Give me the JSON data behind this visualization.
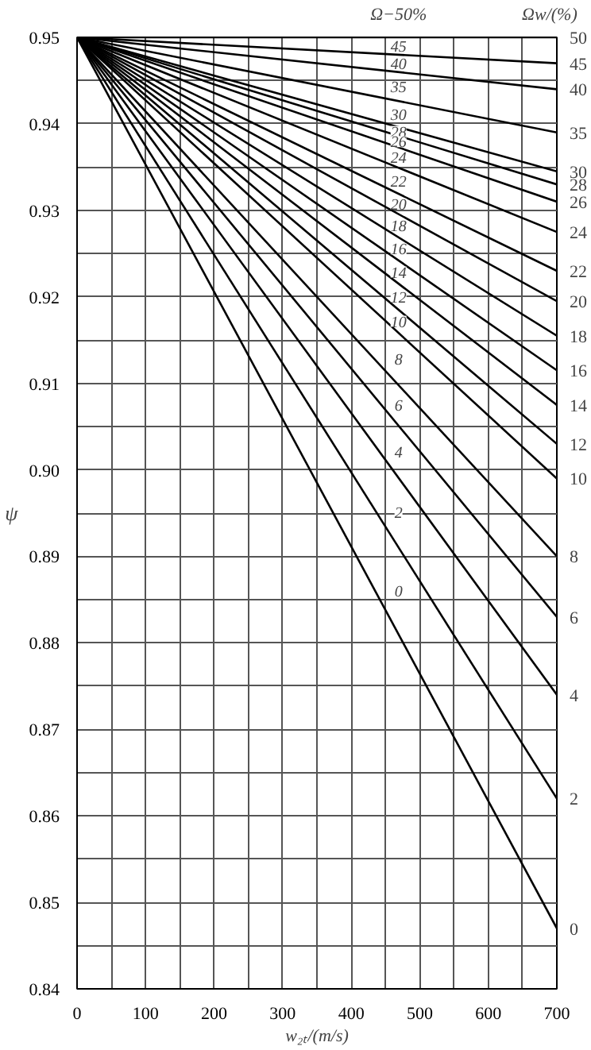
{
  "chart_data": {
    "type": "line",
    "xlabel": "w₂ₜ/(m/s)",
    "ylabel": "ψ",
    "x": [
      0,
      700
    ],
    "series": [
      {
        "name": "50",
        "color": "#000000",
        "values": [
          0.95,
          0.95
        ]
      },
      {
        "name": "45",
        "color": "#000000",
        "values": [
          0.95,
          0.947
        ]
      },
      {
        "name": "40",
        "color": "#000000",
        "values": [
          0.95,
          0.944
        ]
      },
      {
        "name": "35",
        "color": "#000000",
        "values": [
          0.95,
          0.939
        ]
      },
      {
        "name": "30",
        "color": "#000000",
        "values": [
          0.95,
          0.9345
        ]
      },
      {
        "name": "28",
        "color": "#000000",
        "values": [
          0.95,
          0.933
        ]
      },
      {
        "name": "26",
        "color": "#000000",
        "values": [
          0.95,
          0.931
        ]
      },
      {
        "name": "24",
        "color": "#000000",
        "values": [
          0.95,
          0.9275
        ]
      },
      {
        "name": "22",
        "color": "#000000",
        "values": [
          0.95,
          0.923
        ]
      },
      {
        "name": "20",
        "color": "#000000",
        "values": [
          0.95,
          0.9195
        ]
      },
      {
        "name": "18",
        "color": "#000000",
        "values": [
          0.95,
          0.9155
        ]
      },
      {
        "name": "16",
        "color": "#000000",
        "values": [
          0.95,
          0.9115
        ]
      },
      {
        "name": "14",
        "color": "#000000",
        "values": [
          0.95,
          0.9075
        ]
      },
      {
        "name": "12",
        "color": "#000000",
        "values": [
          0.95,
          0.903
        ]
      },
      {
        "name": "10",
        "color": "#000000",
        "values": [
          0.95,
          0.899
        ]
      },
      {
        "name": "8",
        "color": "#000000",
        "values": [
          0.95,
          0.89
        ]
      },
      {
        "name": "6",
        "color": "#000000",
        "values": [
          0.95,
          0.883
        ]
      },
      {
        "name": "4",
        "color": "#000000",
        "values": [
          0.95,
          0.874
        ]
      },
      {
        "name": "2",
        "color": "#000000",
        "values": [
          0.95,
          0.862
        ]
      },
      {
        "name": "0",
        "color": "#000000",
        "values": [
          0.95,
          0.847
        ]
      }
    ],
    "annotations": [
      "Ω−50%",
      "Ωw/(%)",
      "45",
      "40",
      "35",
      "30",
      "28",
      "26",
      "24",
      "22",
      "20",
      "18",
      "16",
      "14",
      "12",
      "10",
      "8",
      "6",
      "4",
      "2",
      "0"
    ],
    "xlim": [
      0,
      700
    ],
    "ylim": [
      0.84,
      0.95
    ],
    "xticks": [
      0,
      {
        "value": 50,
        "label": null
      },
      100,
      {
        "value": 150,
        "label": null
      },
      200,
      {
        "value": 250,
        "label": null
      },
      300,
      {
        "value": 350,
        "label": null
      },
      400,
      {
        "value": 450,
        "label": null
      },
      500,
      {
        "value": 550,
        "label": null
      },
      600,
      {
        "value": 650,
        "label": null
      },
      700
    ],
    "yticks": [
      0.84,
      {
        "value": 0.845,
        "label": null
      },
      0.85,
      {
        "value": 0.855,
        "label": null
      },
      0.86,
      {
        "value": 0.865,
        "label": null
      },
      0.87,
      {
        "value": 0.875,
        "label": null
      },
      0.88,
      {
        "value": 0.885,
        "label": null
      },
      0.89,
      {
        "value": 0.895,
        "label": null
      },
      {
        "value": 0.9,
        "label": "0.90"
      },
      {
        "value": 0.905,
        "label": null
      },
      0.91,
      {
        "value": 0.915,
        "label": null
      },
      0.92,
      {
        "value": 0.925,
        "label": null
      },
      0.93,
      {
        "value": 0.935,
        "label": null
      },
      0.94,
      {
        "value": 0.945,
        "label": null
      },
      0.95
    ],
    "grid": true,
    "line_style": "solid"
  }
}
